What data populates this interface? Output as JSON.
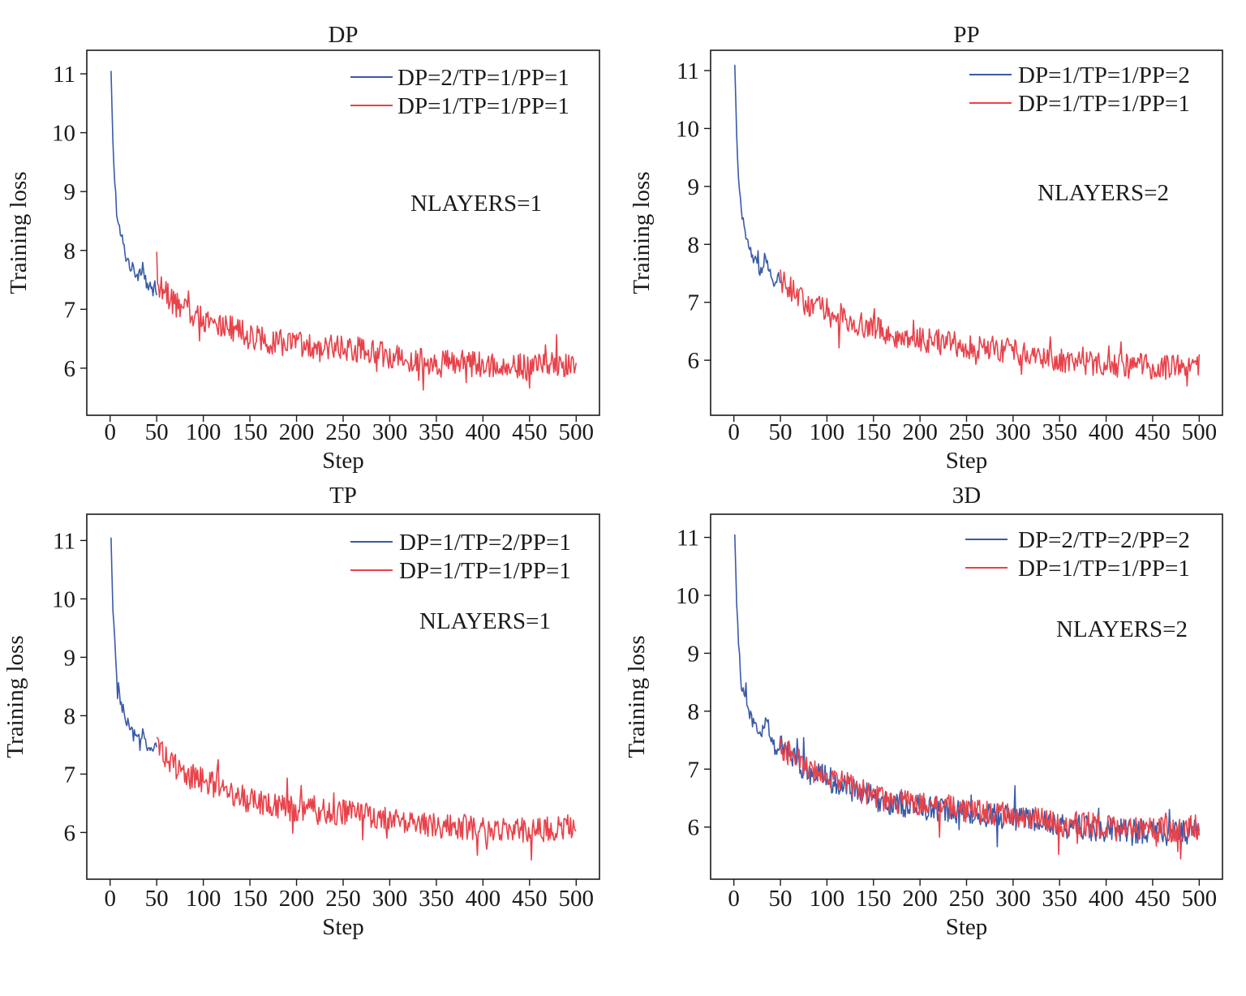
{
  "colors": {
    "series_a": "#3a5aa8",
    "series_b": "#e8424a",
    "axis": "#1a1a1a"
  },
  "chart_data": [
    {
      "type": "line",
      "title": "DP",
      "xlabel": "Step",
      "ylabel": "Training loss",
      "xlim": [
        -25,
        525
      ],
      "ylim": [
        5.2,
        11.4
      ],
      "xticks": [
        0,
        50,
        100,
        150,
        200,
        250,
        300,
        350,
        400,
        450,
        500
      ],
      "yticks": [
        6,
        7,
        8,
        9,
        10,
        11
      ],
      "legend_position": "top-right",
      "annotation": "NLAYERS=1",
      "series": [
        {
          "name": "DP=2/TP=1/PP=1",
          "color": "#3a5aa8",
          "x": [
            1,
            3,
            5,
            8,
            12,
            16,
            20,
            25,
            30,
            35,
            40,
            45,
            50
          ],
          "y": [
            11.05,
            9.85,
            9.2,
            8.45,
            8.25,
            7.95,
            7.8,
            7.65,
            7.6,
            7.75,
            7.4,
            7.3,
            7.45
          ]
        },
        {
          "name": "DP=1/TP=1/PP=1",
          "color": "#e8424a",
          "x": [
            50,
            75,
            100,
            125,
            150,
            175,
            200,
            225,
            250,
            275,
            300,
            325,
            350,
            375,
            400,
            425,
            450,
            475,
            500
          ],
          "y": [
            7.45,
            7.0,
            6.85,
            6.7,
            6.55,
            6.45,
            6.4,
            6.35,
            6.35,
            6.3,
            6.2,
            6.15,
            6.1,
            6.1,
            6.05,
            6.05,
            6.05,
            6.05,
            6.1
          ]
        }
      ]
    },
    {
      "type": "line",
      "title": "PP",
      "xlabel": "Step",
      "ylabel": "Training loss",
      "xlim": [
        -25,
        525
      ],
      "ylim": [
        5.05,
        11.35
      ],
      "xticks": [
        0,
        50,
        100,
        150,
        200,
        250,
        300,
        350,
        400,
        450,
        500
      ],
      "yticks": [
        6,
        7,
        8,
        9,
        10,
        11
      ],
      "legend_position": "top-right",
      "annotation": "NLAYERS=2",
      "series": [
        {
          "name": "DP=1/TP=1/PP=2",
          "color": "#3a5aa8",
          "x": [
            1,
            3,
            5,
            8,
            12,
            16,
            20,
            25,
            30,
            35,
            40,
            45,
            50
          ],
          "y": [
            11.1,
            9.9,
            9.25,
            8.5,
            8.2,
            7.95,
            7.8,
            7.6,
            7.55,
            7.7,
            7.4,
            7.35,
            7.45
          ]
        },
        {
          "name": "DP=1/TP=1/PP=1",
          "color": "#e8424a",
          "x": [
            50,
            75,
            100,
            125,
            150,
            175,
            200,
            225,
            250,
            275,
            300,
            325,
            350,
            375,
            400,
            425,
            450,
            475,
            500
          ],
          "y": [
            7.45,
            7.0,
            6.85,
            6.7,
            6.55,
            6.4,
            6.35,
            6.3,
            6.25,
            6.2,
            6.15,
            6.1,
            6.0,
            5.95,
            5.95,
            5.9,
            5.9,
            5.9,
            5.95
          ]
        }
      ]
    },
    {
      "type": "line",
      "title": "TP",
      "xlabel": "Step",
      "ylabel": "Training loss",
      "xlim": [
        -25,
        525
      ],
      "ylim": [
        5.2,
        11.45
      ],
      "xticks": [
        0,
        50,
        100,
        150,
        200,
        250,
        300,
        350,
        400,
        450,
        500
      ],
      "yticks": [
        6,
        7,
        8,
        9,
        10,
        11
      ],
      "legend_position": "top-right",
      "annotation": "NLAYERS=1",
      "series": [
        {
          "name": "DP=1/TP=2/PP=1",
          "color": "#3a5aa8",
          "x": [
            1,
            3,
            5,
            8,
            12,
            16,
            20,
            25,
            30,
            35,
            40,
            45,
            50
          ],
          "y": [
            11.05,
            9.8,
            9.2,
            8.4,
            8.2,
            7.95,
            7.8,
            7.65,
            7.6,
            7.8,
            7.45,
            7.35,
            7.5
          ]
        },
        {
          "name": "DP=1/TP=1/PP=1",
          "color": "#e8424a",
          "x": [
            50,
            75,
            100,
            125,
            150,
            175,
            200,
            225,
            250,
            275,
            300,
            325,
            350,
            375,
            400,
            425,
            450,
            475,
            500
          ],
          "y": [
            7.5,
            7.05,
            6.9,
            6.7,
            6.55,
            6.45,
            6.4,
            6.35,
            6.35,
            6.3,
            6.2,
            6.15,
            6.1,
            6.1,
            6.05,
            6.05,
            6.05,
            6.05,
            6.1
          ]
        }
      ]
    },
    {
      "type": "line",
      "title": "3D",
      "xlabel": "Step",
      "ylabel": "Training loss",
      "xlim": [
        -25,
        525
      ],
      "ylim": [
        5.1,
        11.4
      ],
      "xticks": [
        0,
        50,
        100,
        150,
        200,
        250,
        300,
        350,
        400,
        450,
        500
      ],
      "yticks": [
        6,
        7,
        8,
        9,
        10,
        11
      ],
      "legend_position": "top-right",
      "annotation": "NLAYERS=2",
      "series": [
        {
          "name": "DP=2/TP=2/PP=2",
          "color": "#3a5aa8",
          "x": [
            1,
            3,
            5,
            8,
            12,
            16,
            20,
            25,
            30,
            35,
            40,
            45,
            50,
            75,
            100,
            125,
            150,
            175,
            200,
            225,
            250,
            275,
            300,
            325,
            350,
            375,
            400,
            425,
            450,
            475,
            500
          ],
          "y": [
            11.05,
            9.85,
            9.2,
            8.45,
            8.25,
            8.0,
            7.85,
            7.65,
            7.6,
            7.95,
            7.45,
            7.35,
            7.4,
            7.0,
            6.85,
            6.65,
            6.5,
            6.4,
            6.35,
            6.3,
            6.25,
            6.2,
            6.15,
            6.1,
            6.0,
            6.0,
            5.95,
            5.95,
            5.9,
            5.9,
            5.95
          ]
        },
        {
          "name": "DP=1/TP=1/PP=1",
          "color": "#e8424a",
          "x": [
            50,
            75,
            100,
            125,
            150,
            175,
            200,
            225,
            250,
            275,
            300,
            325,
            350,
            375,
            400,
            425,
            450,
            475,
            500
          ],
          "y": [
            7.4,
            7.05,
            6.9,
            6.7,
            6.55,
            6.45,
            6.4,
            6.35,
            6.3,
            6.25,
            6.2,
            6.15,
            6.05,
            6.05,
            6.0,
            5.95,
            5.95,
            5.95,
            6.0
          ]
        }
      ]
    }
  ]
}
